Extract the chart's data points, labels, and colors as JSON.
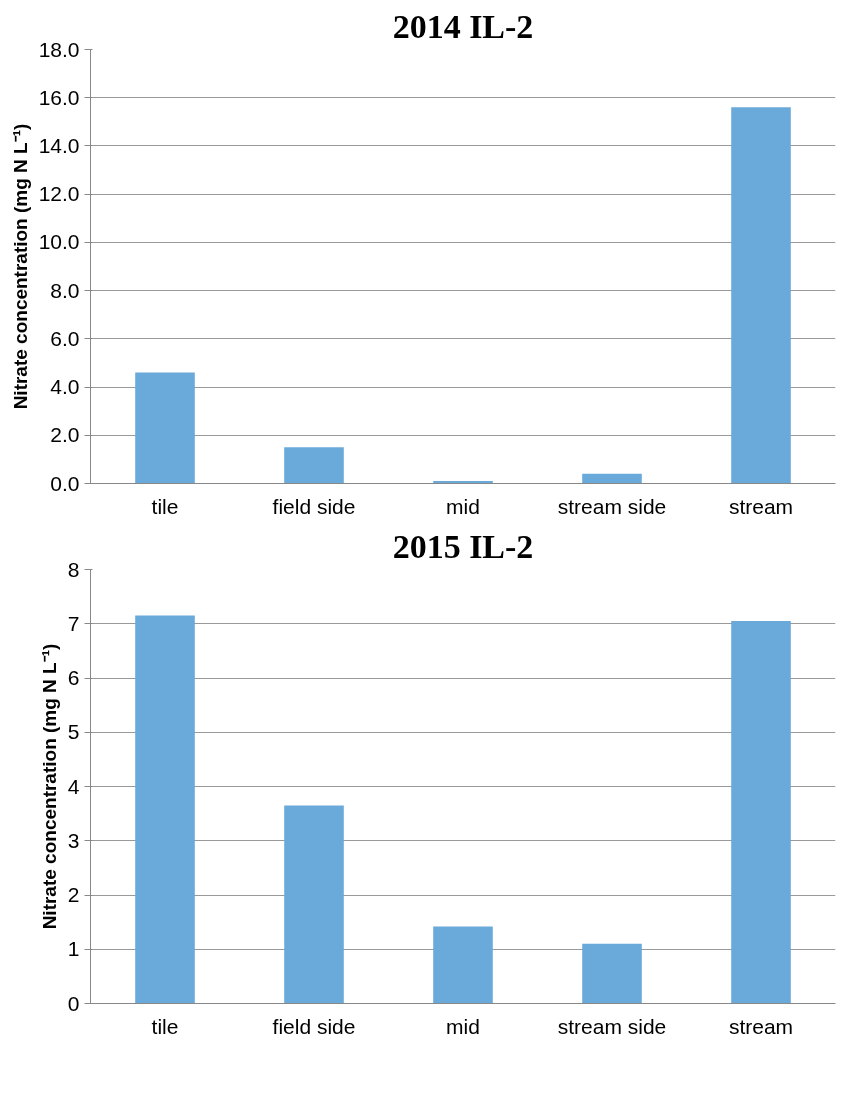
{
  "chart_data": [
    {
      "type": "bar",
      "title": "2014 IL-2",
      "ylabel": "Nitrate concentration (mg N L⁻¹)",
      "categories": [
        "tile",
        "field side",
        "mid",
        "stream side",
        "stream"
      ],
      "values": [
        4.6,
        1.5,
        0.1,
        0.4,
        15.6
      ],
      "color": "#6aaadb",
      "ylim": [
        0,
        18
      ],
      "yticks": [
        {
          "value": 0,
          "label": "0.0"
        },
        {
          "value": 2,
          "label": "2.0"
        },
        {
          "value": 4,
          "label": "4.0"
        },
        {
          "value": 6,
          "label": "6.0"
        },
        {
          "value": 8,
          "label": "8.0"
        },
        {
          "value": 10,
          "label": "10.0"
        },
        {
          "value": 12,
          "label": "12.0"
        },
        {
          "value": 14,
          "label": "14.0"
        },
        {
          "value": 16,
          "label": "16.0"
        },
        {
          "value": 18,
          "label": "18.0"
        }
      ],
      "grid": "y"
    },
    {
      "type": "bar",
      "title": "2015 IL-2",
      "ylabel": "Nitrate concentration (mg N L⁻¹)",
      "categories": [
        "tile",
        "field side",
        "mid",
        "stream side",
        "stream"
      ],
      "values": [
        7.15,
        3.65,
        1.42,
        1.1,
        7.05
      ],
      "color": "#6aaadb",
      "ylim": [
        0,
        8
      ],
      "yticks": [
        0,
        1,
        2,
        3,
        4,
        5,
        6,
        7,
        8
      ],
      "grid": "y"
    }
  ]
}
